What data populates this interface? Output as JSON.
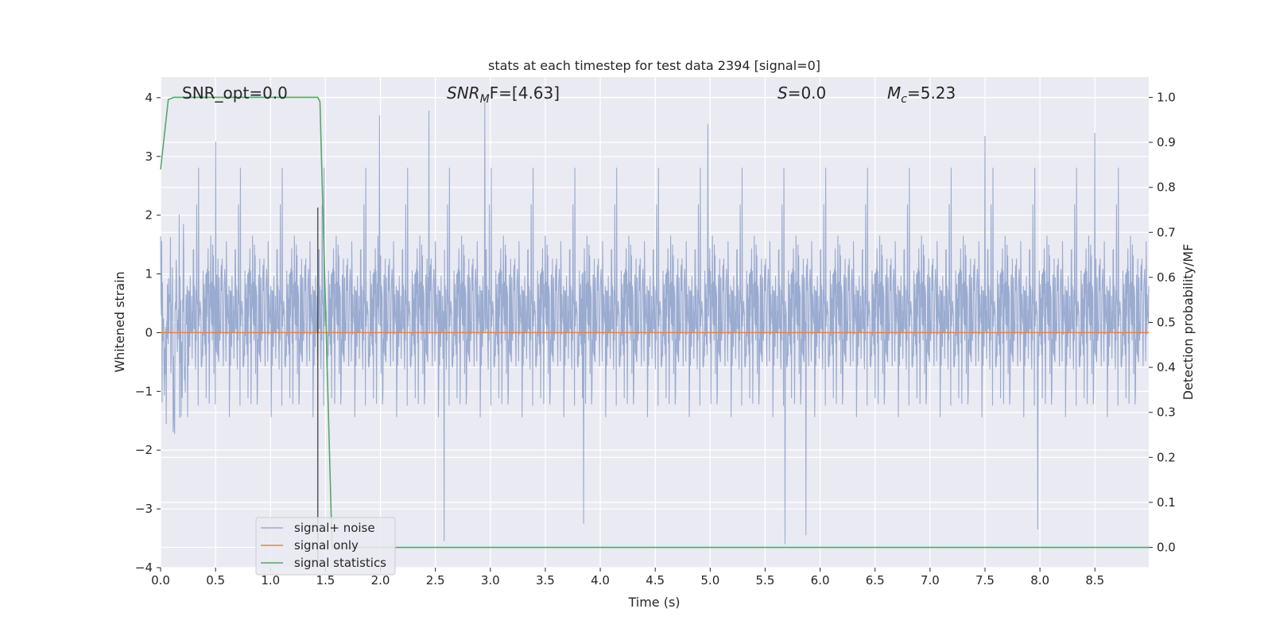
{
  "chart_data": {
    "type": "line",
    "title": "stats at each timestep for test data 2394 [signal=0]",
    "xlabel": "Time (s)",
    "ylabel_left": "Whitened strain",
    "ylabel_right": "Detection probability/MF",
    "xlim": [
      0.0,
      8.99
    ],
    "ylim_left": [
      -4.0,
      4.35
    ],
    "ylim_right": [
      -0.045,
      1.045
    ],
    "x_ticks": [
      "0.0",
      "0.5",
      "1.0",
      "1.5",
      "2.0",
      "2.5",
      "3.0",
      "3.5",
      "4.0",
      "4.5",
      "5.0",
      "5.5",
      "6.0",
      "6.5",
      "7.0",
      "7.5",
      "8.0",
      "8.5"
    ],
    "y_ticks_left": [
      "−4",
      "−3",
      "−2",
      "−1",
      "0",
      "1",
      "2",
      "3",
      "4"
    ],
    "y_ticks_right": [
      "0.0",
      "0.1",
      "0.2",
      "0.3",
      "0.4",
      "0.5",
      "0.6",
      "0.7",
      "0.8",
      "0.9",
      "1.0"
    ],
    "grid": true,
    "legend_position": "bottom-left",
    "annotations": {
      "snr_opt": "SNR_opt=0.0",
      "snr_mf_main": "SNR",
      "snr_mf_sub": "M",
      "snr_mf_rest": "F=[4.63]",
      "s_main": "S",
      "s_rest": "=0.0",
      "mc_main": "M",
      "mc_sub": "c",
      "mc_rest": "=5.23"
    },
    "vertical_marker_x": 1.43,
    "series": [
      {
        "name": "signal+ noise",
        "axis": "left",
        "color": "#9aabd0",
        "style": "dense noise, amplitude mostly within ±2.5",
        "extremes": [
          {
            "x": 0.5,
            "y": 3.25
          },
          {
            "x": 1.99,
            "y": 3.7
          },
          {
            "x": 2.44,
            "y": 3.78
          },
          {
            "x": 2.95,
            "y": 4.0
          },
          {
            "x": 4.98,
            "y": 3.55
          },
          {
            "x": 7.5,
            "y": 3.35
          },
          {
            "x": 8.5,
            "y": 3.4
          },
          {
            "x": 2.58,
            "y": -3.55
          },
          {
            "x": 5.68,
            "y": -3.6
          },
          {
            "x": 5.87,
            "y": -3.45
          },
          {
            "x": 7.98,
            "y": -3.35
          },
          {
            "x": 3.85,
            "y": -3.25
          }
        ]
      },
      {
        "name": "signal only",
        "axis": "left",
        "color": "#dd8452",
        "x": [
          0.0,
          8.99
        ],
        "y": [
          0.0,
          0.0
        ]
      },
      {
        "name": "signal statistics",
        "axis": "right",
        "color": "#55a868",
        "x": [
          0.0,
          0.07,
          0.12,
          1.43,
          1.45,
          1.56,
          8.99
        ],
        "y": [
          0.84,
          0.995,
          1.0,
          1.0,
          0.99,
          0.0,
          0.0
        ]
      }
    ]
  }
}
